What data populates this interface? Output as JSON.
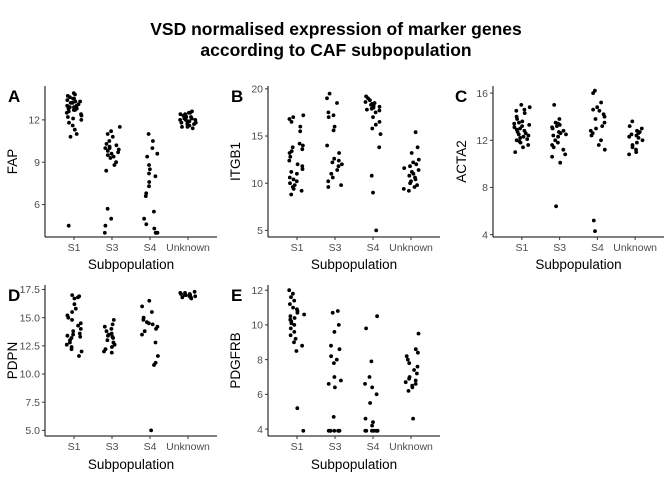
{
  "title_lines": [
    "VSD normalised expression of marker genes",
    "according to CAF subpopulation"
  ],
  "chart_data": [
    {
      "type": "scatter",
      "tag": "A",
      "ylabel": "FAP",
      "xlabel": "Subpopulation",
      "categories": [
        "S1",
        "S3",
        "S4",
        "Unknown"
      ],
      "ylim": [
        3.7,
        14.4
      ],
      "yticks": [
        6,
        9,
        12
      ],
      "points": {
        "S1": [
          13.9,
          13.8,
          13.7,
          13.6,
          13.5,
          13.5,
          13.4,
          13.3,
          13.3,
          13.2,
          13.2,
          13.1,
          13.0,
          13.0,
          12.9,
          12.9,
          12.8,
          12.8,
          12.7,
          12.7,
          12.6,
          12.5,
          12.4,
          12.3,
          12.2,
          12.1,
          12.0,
          11.8,
          11.6,
          11.3,
          11.0,
          10.8,
          4.5
        ],
        "S3": [
          11.5,
          11.2,
          11.0,
          10.8,
          10.5,
          10.3,
          10.2,
          10.1,
          10.0,
          10.0,
          9.9,
          9.8,
          9.7,
          9.6,
          9.5,
          9.4,
          9.3,
          9.0,
          8.8,
          8.4,
          5.7,
          5.0,
          4.5,
          4.0
        ],
        "S4": [
          11.0,
          10.5,
          10.0,
          9.6,
          9.4,
          8.8,
          8.5,
          8.2,
          8.0,
          7.6,
          7.3,
          6.8,
          6.6,
          5.5,
          5.0,
          4.6,
          4.3,
          4.0,
          4.0,
          4.0,
          4.0
        ],
        "Unknown": [
          12.6,
          12.5,
          12.5,
          12.4,
          12.4,
          12.3,
          12.3,
          12.2,
          12.2,
          12.1,
          12.1,
          12.0,
          12.0,
          12.0,
          11.9,
          11.9,
          11.8,
          11.8,
          11.7,
          11.7,
          11.6,
          11.5,
          11.5,
          11.4
        ]
      }
    },
    {
      "type": "scatter",
      "tag": "B",
      "ylabel": "ITGB1",
      "xlabel": "Subpopulation",
      "categories": [
        "S1",
        "S3",
        "S4",
        "Unknown"
      ],
      "ylim": [
        4.3,
        20.3
      ],
      "yticks": [
        5,
        10,
        15,
        20
      ],
      "points": {
        "S1": [
          17.2,
          17.0,
          16.8,
          16.5,
          16.0,
          15.5,
          14.2,
          14.0,
          13.8,
          13.6,
          13.4,
          13.2,
          12.8,
          12.4,
          12.0,
          11.8,
          11.5,
          11.2,
          11.0,
          10.6,
          10.4,
          10.2,
          10.0,
          9.8,
          9.6,
          9.4,
          9.2,
          8.8
        ],
        "S3": [
          19.5,
          19.0,
          18.5,
          17.5,
          17.2,
          17.0,
          16.0,
          15.6,
          14.0,
          13.2,
          12.6,
          12.4,
          12.2,
          12.0,
          11.8,
          11.4,
          11.0,
          10.6,
          10.2,
          9.8,
          9.6
        ],
        "S4": [
          19.2,
          19.0,
          18.8,
          18.6,
          18.5,
          18.4,
          18.3,
          18.2,
          18.1,
          18.0,
          17.9,
          17.8,
          17.7,
          17.5,
          17.0,
          16.5,
          16.2,
          15.8,
          15.2,
          13.8,
          10.8,
          9.0,
          5.0
        ],
        "Unknown": [
          15.4,
          13.8,
          13.2,
          12.5,
          12.2,
          12.0,
          11.8,
          11.6,
          11.4,
          11.2,
          11.0,
          10.8,
          10.6,
          10.4,
          10.2,
          10.0,
          9.8,
          9.6,
          9.4,
          9.2
        ]
      }
    },
    {
      "type": "scatter",
      "tag": "C",
      "ylabel": "ACTA2",
      "xlabel": "Subpopulation",
      "categories": [
        "S1",
        "S3",
        "S4",
        "Unknown"
      ],
      "ylim": [
        3.8,
        16.6
      ],
      "yticks": [
        4,
        8,
        12,
        16
      ],
      "points": {
        "S1": [
          15.0,
          14.8,
          14.6,
          14.5,
          14.3,
          14.0,
          13.8,
          13.6,
          13.5,
          13.4,
          13.3,
          13.2,
          13.1,
          13.0,
          12.9,
          12.8,
          12.7,
          12.6,
          12.5,
          12.4,
          12.3,
          12.2,
          12.1,
          12.0,
          11.9,
          11.8,
          11.6,
          11.4,
          11.0
        ],
        "S3": [
          15.0,
          13.8,
          13.5,
          13.4,
          13.3,
          13.2,
          13.1,
          13.0,
          12.8,
          12.7,
          12.6,
          12.5,
          12.4,
          12.3,
          12.0,
          11.8,
          11.6,
          11.4,
          11.2,
          10.8,
          10.6,
          10.1,
          6.4
        ],
        "S4": [
          16.2,
          16.0,
          15.2,
          14.8,
          14.6,
          14.5,
          14.2,
          14.0,
          13.8,
          13.5,
          13.2,
          13.0,
          12.8,
          12.6,
          12.4,
          12.0,
          11.6,
          11.2,
          5.2,
          4.3
        ],
        "Unknown": [
          13.6,
          13.2,
          13.0,
          12.8,
          12.7,
          12.6,
          12.5,
          12.4,
          12.3,
          12.2,
          12.0,
          11.8,
          11.6,
          11.4,
          11.2,
          11.0,
          10.8
        ]
      }
    },
    {
      "type": "scatter",
      "tag": "D",
      "ylabel": "PDPN",
      "xlabel": "Subpopulation",
      "categories": [
        "S1",
        "S3",
        "S4",
        "Unknown"
      ],
      "ylim": [
        4.5,
        17.9
      ],
      "yticks": [
        5.0,
        7.5,
        10.0,
        12.5,
        15.0,
        17.5
      ],
      "ytick_labels": [
        "5.0",
        "7.5",
        "10.0",
        "12.5",
        "15.0",
        "17.5"
      ],
      "points": {
        "S1": [
          17.0,
          16.9,
          16.8,
          16.7,
          16.2,
          15.8,
          15.5,
          15.2,
          15.0,
          14.8,
          14.5,
          14.3,
          14.0,
          13.8,
          13.6,
          13.5,
          13.4,
          13.3,
          13.2,
          13.0,
          12.8,
          12.6,
          12.4,
          12.2,
          12.0,
          11.6
        ],
        "S3": [
          14.8,
          14.4,
          14.2,
          14.0,
          13.8,
          13.6,
          13.5,
          13.4,
          13.3,
          13.2,
          13.0,
          12.8,
          12.6,
          12.4,
          12.2,
          12.0,
          11.9
        ],
        "S4": [
          16.5,
          16.0,
          15.5,
          15.0,
          14.8,
          14.6,
          14.5,
          14.4,
          14.2,
          14.0,
          13.8,
          13.5,
          12.8,
          11.6,
          11.0,
          10.8,
          5.0
        ],
        "Unknown": [
          17.3,
          17.2,
          17.2,
          17.1,
          17.1,
          17.0,
          17.0,
          17.0,
          16.9,
          16.9,
          16.8,
          16.8,
          16.7
        ]
      }
    },
    {
      "type": "scatter",
      "tag": "E",
      "ylabel": "PDGFRB",
      "xlabel": "Subpopulation",
      "categories": [
        "S1",
        "S3",
        "S4",
        "Unknown"
      ],
      "ylim": [
        3.6,
        12.3
      ],
      "yticks": [
        4,
        6,
        8,
        10,
        12
      ],
      "points": {
        "S1": [
          12.0,
          11.8,
          11.6,
          11.4,
          11.2,
          11.0,
          10.9,
          10.8,
          10.7,
          10.6,
          10.5,
          10.4,
          10.3,
          10.2,
          10.1,
          10.0,
          9.8,
          9.6,
          9.4,
          9.2,
          9.0,
          8.8,
          8.5,
          5.2,
          3.9
        ],
        "S3": [
          10.8,
          10.7,
          10.0,
          9.6,
          8.8,
          8.6,
          8.2,
          8.0,
          7.8,
          7.0,
          6.8,
          6.6,
          6.4,
          4.7,
          3.9,
          3.9,
          3.9,
          3.9,
          3.9,
          3.9,
          3.9
        ],
        "S4": [
          10.5,
          9.8,
          7.9,
          7.0,
          6.6,
          6.4,
          6.0,
          5.5,
          4.6,
          4.4,
          4.2,
          3.9,
          3.9,
          3.9,
          3.9,
          3.9,
          3.9,
          3.9
        ],
        "Unknown": [
          9.5,
          8.6,
          8.4,
          8.2,
          8.0,
          7.8,
          7.6,
          7.4,
          7.2,
          7.0,
          6.9,
          6.8,
          6.7,
          6.6,
          6.5,
          6.4,
          6.2,
          4.6
        ]
      }
    }
  ]
}
